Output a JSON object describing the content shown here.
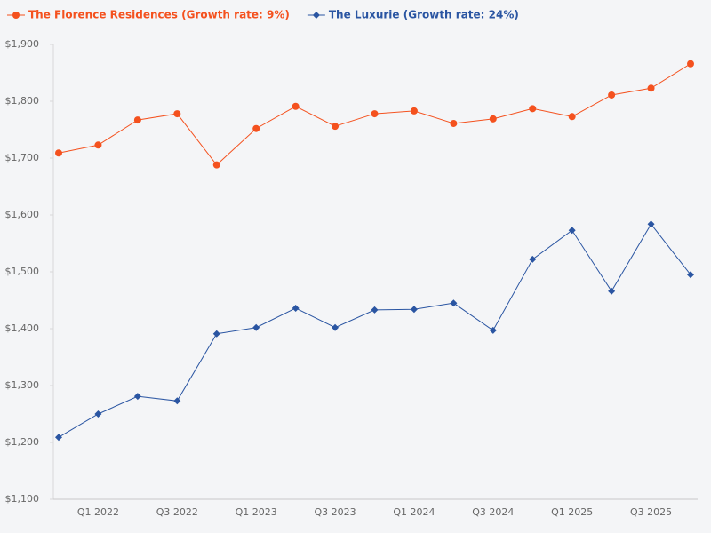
{
  "chart_data": {
    "type": "line",
    "categories": [
      null,
      "Q1 2022",
      null,
      "Q3 2022",
      null,
      "Q1 2023",
      null,
      "Q3 2023",
      null,
      "Q1 2024",
      null,
      "Q3 2024",
      null,
      "Q1 2025",
      null,
      "Q3 2025",
      null
    ],
    "series": [
      {
        "name": "The Florence Residences (Growth rate: 9%)",
        "color": "#f4511e",
        "marker": "circle",
        "values": [
          1709,
          1723,
          1767,
          1778,
          1688,
          1752,
          1791,
          1756,
          1778,
          1783,
          1761,
          1769,
          1787,
          1773,
          1811,
          1823,
          1866
        ]
      },
      {
        "name": "The Luxurie (Growth rate: 24%)",
        "color": "#2a55a2",
        "marker": "diamond",
        "values": [
          1209,
          1250,
          1281,
          1273,
          1391,
          1402,
          1436,
          1402,
          1433,
          1434,
          1445,
          1397,
          1522,
          1573,
          1466,
          1584,
          1495
        ]
      }
    ],
    "ylim": [
      1100,
      1900
    ],
    "yticks": [
      {
        "value": 1100,
        "label": "$1,100"
      },
      {
        "value": 1200,
        "label": "$1,200"
      },
      {
        "value": 1300,
        "label": "$1,300"
      },
      {
        "value": 1400,
        "label": "$1,400"
      },
      {
        "value": 1500,
        "label": "$1,500"
      },
      {
        "value": 1600,
        "label": "$1,600"
      },
      {
        "value": 1700,
        "label": "$1,700"
      },
      {
        "value": 1800,
        "label": "$1,800"
      },
      {
        "value": 1900,
        "label": "$1,900"
      }
    ],
    "grid": false,
    "legend": "top-left"
  }
}
